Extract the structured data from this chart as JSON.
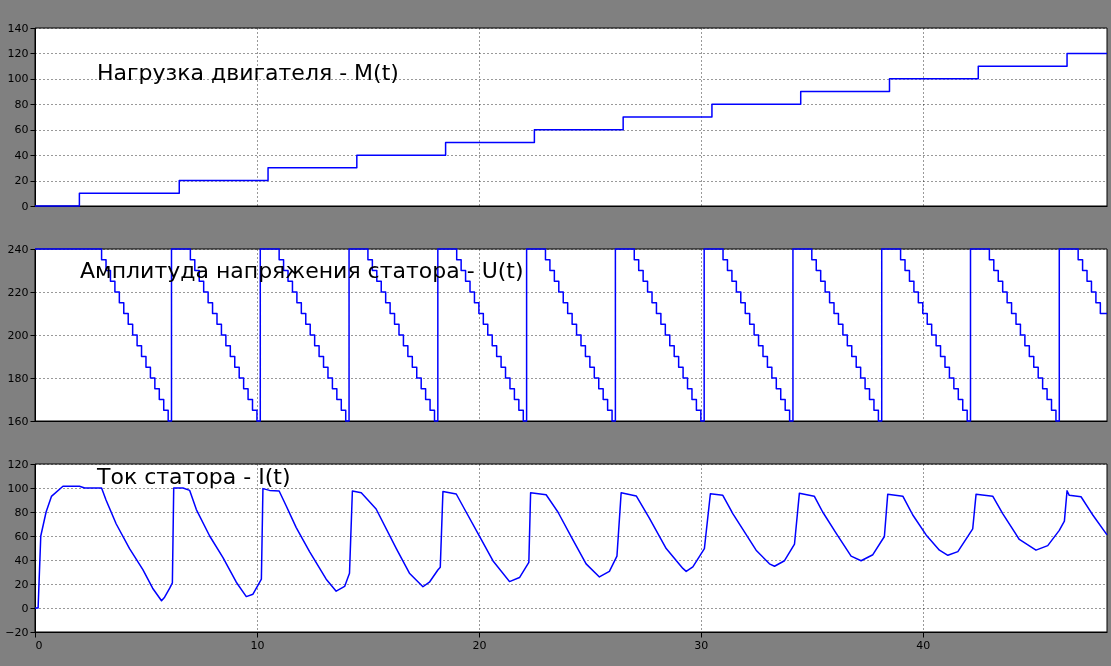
{
  "chart_data": [
    {
      "type": "step",
      "title": "Нагрузка двигателя - M(t)",
      "xlim": [
        0,
        48.3
      ],
      "xticks": [
        0,
        10,
        20,
        30,
        40
      ],
      "ylim": [
        0,
        140
      ],
      "yticks": [
        0,
        20,
        40,
        60,
        80,
        100,
        120,
        140
      ],
      "grid": true,
      "tick_labels": "y",
      "x": [
        0,
        2,
        6.5,
        10.5,
        14.5,
        18.5,
        22.5,
        26.5,
        30.5,
        34.5,
        38.5,
        42.5,
        46.5,
        48.3
      ],
      "series": [
        {
          "color": "#0000ff",
          "values": [
            0,
            10,
            20,
            30,
            40,
            50,
            60,
            70,
            80,
            90,
            100,
            110,
            120,
            120
          ]
        }
      ]
    },
    {
      "type": "step",
      "title": "Амплитуда напряжения статора - U(t)",
      "xlim": [
        0,
        48.3
      ],
      "xticks": [
        0,
        10,
        20,
        30,
        40
      ],
      "ylim": [
        160,
        240
      ],
      "yticks": [
        160,
        180,
        200,
        220,
        240
      ],
      "grid": true,
      "tick_labels": "y",
      "x": [
        0,
        3,
        3.2,
        3.4,
        3.6,
        3.8,
        4,
        4.2,
        4.4,
        4.6,
        4.8,
        5,
        5.2,
        5.4,
        5.6,
        5.8,
        6,
        6.15,
        7,
        7.2,
        7.4,
        7.6,
        7.8,
        8,
        8.2,
        8.4,
        8.6,
        8.8,
        9,
        9.2,
        9.4,
        9.6,
        9.8,
        10,
        10.15,
        11,
        11.2,
        11.4,
        11.6,
        11.8,
        12,
        12.2,
        12.4,
        12.6,
        12.8,
        13,
        13.2,
        13.4,
        13.6,
        13.8,
        14,
        14.15,
        15,
        15.2,
        15.4,
        15.6,
        15.8,
        16,
        16.2,
        16.4,
        16.6,
        16.8,
        17,
        17.2,
        17.4,
        17.6,
        17.8,
        18,
        18.15,
        19,
        19.2,
        19.4,
        19.6,
        19.8,
        20,
        20.2,
        20.4,
        20.6,
        20.8,
        21,
        21.2,
        21.4,
        21.6,
        21.8,
        22,
        22.15,
        23,
        23.2,
        23.4,
        23.6,
        23.8,
        24,
        24.2,
        24.4,
        24.6,
        24.8,
        25,
        25.2,
        25.4,
        25.6,
        25.8,
        26,
        26.15,
        27,
        27.2,
        27.4,
        27.6,
        27.8,
        28,
        28.2,
        28.4,
        28.6,
        28.8,
        29,
        29.2,
        29.4,
        29.6,
        29.8,
        30,
        30.15,
        31,
        31.2,
        31.4,
        31.6,
        31.8,
        32,
        32.2,
        32.4,
        32.6,
        32.8,
        33,
        33.2,
        33.4,
        33.6,
        33.8,
        34,
        34.15,
        35,
        35.2,
        35.4,
        35.6,
        35.8,
        36,
        36.2,
        36.4,
        36.6,
        36.8,
        37,
        37.2,
        37.4,
        37.6,
        37.8,
        38,
        38.15,
        39,
        39.2,
        39.4,
        39.6,
        39.8,
        40,
        40.2,
        40.4,
        40.6,
        40.8,
        41,
        41.2,
        41.4,
        41.6,
        41.8,
        42,
        42.15,
        43,
        43.2,
        43.4,
        43.6,
        43.8,
        44,
        44.2,
        44.4,
        44.6,
        44.8,
        45,
        45.2,
        45.4,
        45.6,
        45.8,
        46,
        46.15,
        47,
        47.2,
        47.4,
        47.6,
        47.8,
        48,
        48.3
      ],
      "series": [
        {
          "color": "#0000ff",
          "values": [
            240,
            235,
            230,
            225,
            220,
            215,
            210,
            205,
            200,
            195,
            190,
            185,
            180,
            175,
            170,
            165,
            160,
            240,
            235,
            230,
            225,
            220,
            215,
            210,
            205,
            200,
            195,
            190,
            185,
            180,
            175,
            170,
            165,
            160,
            240,
            235,
            230,
            225,
            220,
            215,
            210,
            205,
            200,
            195,
            190,
            185,
            180,
            175,
            170,
            165,
            160,
            240,
            235,
            230,
            225,
            220,
            215,
            210,
            205,
            200,
            195,
            190,
            185,
            180,
            175,
            170,
            165,
            160,
            240,
            235,
            230,
            225,
            220,
            215,
            210,
            205,
            200,
            195,
            190,
            185,
            180,
            175,
            170,
            165,
            160,
            240,
            235,
            230,
            225,
            220,
            215,
            210,
            205,
            200,
            195,
            190,
            185,
            180,
            175,
            170,
            165,
            160,
            240,
            235,
            230,
            225,
            220,
            215,
            210,
            205,
            200,
            195,
            190,
            185,
            180,
            175,
            170,
            165,
            160,
            240,
            235,
            230,
            225,
            220,
            215,
            210,
            205,
            200,
            195,
            190,
            185,
            180,
            175,
            170,
            165,
            160,
            240,
            235,
            230,
            225,
            220,
            215,
            210,
            205,
            200,
            195,
            190,
            185,
            180,
            175,
            170,
            165,
            160,
            240,
            235,
            230,
            225,
            220,
            215,
            210,
            205,
            200,
            195,
            190,
            185,
            180,
            175,
            170,
            165,
            160,
            240,
            235,
            230,
            225,
            220,
            215,
            210,
            205,
            200,
            195,
            190,
            185,
            180,
            175,
            170,
            165,
            160,
            240,
            235,
            230,
            225,
            220,
            215,
            210,
            210
          ]
        }
      ]
    },
    {
      "type": "line",
      "title": "Ток статора - I(t)",
      "xlim": [
        0,
        48.3
      ],
      "xticks": [
        0,
        10,
        20,
        30,
        40
      ],
      "ylim": [
        -20,
        120
      ],
      "yticks": [
        -20,
        0,
        20,
        40,
        60,
        80,
        100,
        120
      ],
      "grid": true,
      "x": [
        0,
        0.14,
        0.26,
        0.5,
        0.74,
        1.26,
        2.0,
        2.24,
        3.0,
        3.2,
        3.66,
        4.26,
        4.86,
        5.3,
        5.7,
        5.84,
        6.07,
        6.19,
        6.25,
        6.67,
        6.97,
        7.27,
        7.87,
        8.47,
        9.07,
        9.52,
        9.82,
        10.05,
        10.2,
        10.27,
        10.57,
        11.0,
        11.32,
        11.77,
        12.37,
        13.12,
        13.57,
        13.95,
        14.17,
        14.3,
        14.7,
        15.0,
        15.37,
        16.28,
        16.87,
        17.48,
        17.77,
        18.15,
        18.26,
        18.38,
        18.98,
        19.35,
        20.03,
        20.63,
        21.38,
        21.83,
        22.25,
        22.33,
        23.03,
        23.56,
        24.23,
        24.83,
        25.43,
        25.88,
        26.22,
        26.41,
        27.09,
        27.68,
        28.44,
        29.19,
        29.34,
        29.64,
        30.16,
        30.43,
        30.99,
        31.44,
        32.49,
        33.09,
        33.32,
        33.77,
        34.22,
        34.44,
        35.11,
        35.49,
        36.1,
        36.77,
        37.22,
        37.75,
        38.27,
        38.42,
        39.1,
        39.55,
        40.15,
        40.75,
        41.13,
        41.58,
        42.25,
        42.4,
        43.15,
        43.6,
        44.35,
        45.1,
        45.63,
        46.15,
        46.38,
        46.5,
        46.6,
        47.13,
        47.66,
        48.3
      ],
      "series": [
        {
          "color": "#0000ff",
          "values": [
            0,
            0,
            60,
            80,
            93,
            101.5,
            101.5,
            100,
            100,
            90,
            70,
            49.5,
            32,
            16.5,
            6,
            9,
            16.5,
            21,
            100,
            100,
            98,
            82,
            60,
            42,
            21.5,
            9.5,
            11.5,
            19,
            24,
            99.5,
            98,
            97.5,
            85,
            67,
            47,
            24,
            14,
            18,
            29,
            97.5,
            96,
            90,
            82.5,
            49.5,
            29,
            17.7,
            21.5,
            31.7,
            34,
            97,
            95,
            82.5,
            59.6,
            39.4,
            22,
            25.4,
            38,
            96,
            94.4,
            80,
            57,
            36.8,
            25.9,
            30.5,
            43.2,
            96,
            93.4,
            74.9,
            49.5,
            33,
            30.5,
            34.3,
            49.5,
            95.2,
            93.9,
            78.7,
            48.2,
            36.8,
            34.8,
            39.4,
            53.3,
            95.7,
            93.2,
            80,
            62.2,
            43.2,
            39.4,
            44.4,
            59.6,
            94.7,
            93.2,
            77.5,
            60.9,
            48.2,
            43.9,
            47,
            66,
            94.7,
            93.2,
            78.7,
            57.1,
            48.2,
            52,
            64.7,
            72.4,
            97.7,
            93.9,
            92.7,
            77.5,
            60.9
          ]
        }
      ]
    }
  ]
}
